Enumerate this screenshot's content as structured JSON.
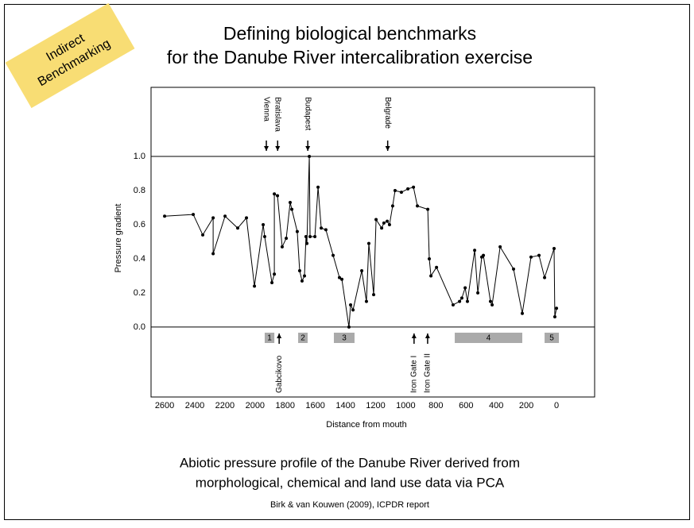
{
  "slide": {
    "note": [
      "Indirect",
      "Benchmarking"
    ],
    "title": [
      "Defining biological benchmarks",
      "for the Danube River intercalibration exercise"
    ],
    "caption": [
      "Abiotic pressure profile of the Danube River derived from",
      "morphological, chemical and land use data via PCA"
    ],
    "source": "Birk & van Kouwen (2009), ICPDR report"
  },
  "chart_data": {
    "type": "line",
    "x_label": "Distance from mouth",
    "y_label": "Pressure gradient",
    "color": "#000000",
    "x": [
      2600,
      2410,
      2347,
      2278,
      2278,
      2199,
      2115,
      2057,
      2004,
      1946,
      1936,
      1888,
      1872,
      1872,
      1851,
      1820,
      1793,
      1767,
      1756,
      1720,
      1704,
      1688,
      1672,
      1662,
      1656,
      1640,
      1635,
      1603,
      1582,
      1561,
      1530,
      1482,
      1440,
      1424,
      1377,
      1366,
      1350,
      1292,
      1261,
      1245,
      1213,
      1197,
      1160,
      1145,
      1123,
      1108,
      1087,
      1071,
      1029,
      986,
      949,
      923,
      854,
      844,
      833,
      796,
      686,
      643,
      628,
      606,
      591,
      543,
      522,
      496,
      485,
      438,
      427,
      374,
      285,
      227,
      169,
      116,
      79,
      16,
      11,
      0
    ],
    "values": [
      0.65,
      0.66,
      0.54,
      0.64,
      0.43,
      0.65,
      0.58,
      0.64,
      0.24,
      0.6,
      0.53,
      0.26,
      0.31,
      0.78,
      0.77,
      0.47,
      0.52,
      0.73,
      0.69,
      0.56,
      0.33,
      0.27,
      0.3,
      0.53,
      0.49,
      1.0,
      0.53,
      0.53,
      0.82,
      0.58,
      0.57,
      0.42,
      0.29,
      0.28,
      0.0,
      0.13,
      0.1,
      0.33,
      0.15,
      0.49,
      0.19,
      0.63,
      0.58,
      0.61,
      0.62,
      0.6,
      0.71,
      0.8,
      0.79,
      0.81,
      0.82,
      0.71,
      0.69,
      0.4,
      0.3,
      0.35,
      0.13,
      0.15,
      0.17,
      0.23,
      0.15,
      0.45,
      0.2,
      0.41,
      0.42,
      0.15,
      0.13,
      0.47,
      0.34,
      0.08,
      0.41,
      0.42,
      0.29,
      0.46,
      0.06,
      0.11
    ],
    "xlim": [
      2690,
      -253
    ],
    "ylim": [
      -0.41,
      1.405
    ],
    "xticks": [
      2600,
      2400,
      2200,
      2000,
      1800,
      1600,
      1400,
      1200,
      1000,
      800,
      600,
      400,
      200,
      0
    ],
    "yticks": [
      {
        "value": 0,
        "label": "0.0"
      },
      {
        "value": 0.2,
        "label": "0.2"
      },
      {
        "value": 0.4,
        "label": "0.4"
      },
      {
        "value": 0.6,
        "label": "0.6"
      },
      {
        "value": 0.8,
        "label": "0.8"
      },
      {
        "value": 1,
        "label": "1.0"
      }
    ],
    "reference_lines": [
      0,
      1
    ],
    "cities": [
      {
        "label": "Vienna",
        "x": 1925
      },
      {
        "label": "Bratislava",
        "x": 1850
      },
      {
        "label": "Budapest",
        "x": 1650
      },
      {
        "label": "Belgrade",
        "x": 1120
      }
    ],
    "dams": [
      {
        "label": "Gabcikovo",
        "x": 1840
      },
      {
        "label": "Iron Gate I",
        "x": 945
      },
      {
        "label": "Iron Gate II",
        "x": 855
      }
    ],
    "zones": [
      {
        "label": "1",
        "from": 1936,
        "to": 1872
      },
      {
        "label": "2",
        "from": 1714,
        "to": 1651
      },
      {
        "label": "3",
        "from": 1477,
        "to": 1340
      },
      {
        "label": "4",
        "from": 675,
        "to": 227
      },
      {
        "label": "5",
        "from": 79,
        "to": -16
      }
    ],
    "zone_color": "#aaaaaa"
  }
}
